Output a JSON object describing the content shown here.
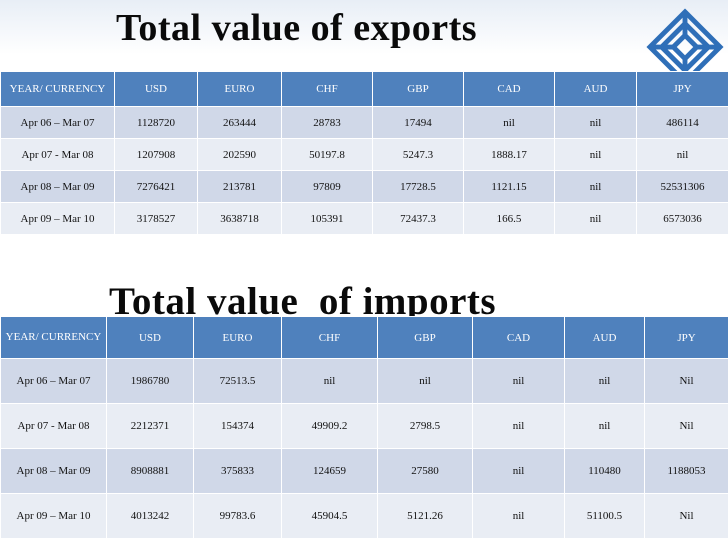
{
  "exports": {
    "title": "Total value of exports",
    "headers": [
      "YEAR/ CURRENCY",
      "USD",
      "EURO",
      "CHF",
      "GBP",
      "CAD",
      "AUD",
      "JPY"
    ],
    "rows": [
      [
        "Apr 06 – Mar 07",
        "1128720",
        "263444",
        "28783",
        "17494",
        "nil",
        "nil",
        "486114"
      ],
      [
        "Apr 07 - Mar 08",
        "1207908",
        "202590",
        "50197.8",
        "5247.3",
        "1888.17",
        "nil",
        "nil"
      ],
      [
        "Apr 08 – Mar 09",
        "7276421",
        "213781",
        "97809",
        "17728.5",
        "1121.15",
        "nil",
        "52531306"
      ],
      [
        "Apr 09 – Mar 10",
        "3178527",
        "3638718",
        "105391",
        "72437.3",
        "166.5",
        "nil",
        "6573036"
      ]
    ]
  },
  "imports": {
    "title": "Total value  of imports",
    "headers": [
      "YEAR/ CURRENCY",
      "USD",
      "EURO",
      "CHF",
      "GBP",
      "CAD",
      "AUD",
      "JPY"
    ],
    "rows": [
      [
        "Apr 06 – Mar 07",
        "1986780",
        "72513.5",
        "nil",
        "nil",
        "nil",
        "nil",
        "Nil"
      ],
      [
        "Apr 07 - Mar 08",
        "2212371",
        "154374",
        "49909.2",
        "2798.5",
        "nil",
        "nil",
        "Nil"
      ],
      [
        "Apr 08 – Mar 09",
        "8908881",
        "375833",
        "124659",
        "27580",
        "nil",
        "110480",
        "1188053"
      ],
      [
        "Apr 09 – Mar 10",
        "4013242",
        "99783.6",
        "45904.5",
        "5121.26",
        "nil",
        "51100.5",
        "Nil"
      ]
    ]
  },
  "colors": {
    "header_fill": "#4f81bd",
    "row_odd_fill": "#d0d8e8",
    "row_even_fill": "#e9edf4",
    "logo_color": "#2f6fb8"
  },
  "icons": {
    "logo": "interlocking-squares-logo-icon"
  }
}
